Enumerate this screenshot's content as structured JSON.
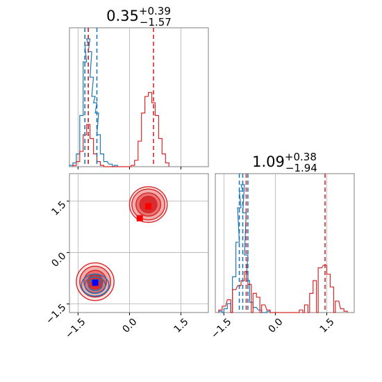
{
  "chart_data": {
    "type": "corner",
    "colors": {
      "blue": "#1f77b4",
      "red": "#d62728",
      "marker_blue": "#0000ff",
      "marker_red": "#ff0000",
      "grid": "#b0b0b0"
    },
    "xlim": [
      -1.75,
      2.3
    ],
    "ylim": [
      -1.75,
      2.3
    ],
    "tick_values": [
      -1.5,
      0.0,
      1.5
    ],
    "tick_labels": [
      "−1.5",
      "0.0",
      "1.5"
    ],
    "panels": [
      {
        "id": "param-1-marginal",
        "title": {
          "median": "0.35",
          "plus": "+0.39",
          "minus": "−1.57"
        },
        "red_quantile_lines": [
          -1.2,
          0.7
        ],
        "blue_quantile_lines": [
          -1.3,
          -1.2,
          -0.95
        ],
        "blue_hist": [
          {
            "x": -1.7,
            "y": 0.01
          },
          {
            "x": -1.6,
            "y": 0.03
          },
          {
            "x": -1.5,
            "y": 0.1
          },
          {
            "x": -1.4,
            "y": 0.4
          },
          {
            "x": -1.3,
            "y": 0.82
          },
          {
            "x": -1.25,
            "y": 0.95
          },
          {
            "x": -1.2,
            "y": 1.0
          },
          {
            "x": -1.15,
            "y": 0.9
          },
          {
            "x": -1.1,
            "y": 0.7
          },
          {
            "x": -1.05,
            "y": 0.55
          },
          {
            "x": -1.0,
            "y": 0.5
          },
          {
            "x": -0.95,
            "y": 0.42
          },
          {
            "x": -0.9,
            "y": 0.25
          },
          {
            "x": -0.8,
            "y": 0.1
          },
          {
            "x": -0.7,
            "y": 0.04
          },
          {
            "x": -0.55,
            "y": 0.02
          },
          {
            "x": -0.4,
            "y": 0.01
          }
        ],
        "red_hist": [
          {
            "x": -1.6,
            "y": 0.01
          },
          {
            "x": -1.5,
            "y": 0.04
          },
          {
            "x": -1.4,
            "y": 0.12
          },
          {
            "x": -1.3,
            "y": 0.25
          },
          {
            "x": -1.2,
            "y": 0.33
          },
          {
            "x": -1.1,
            "y": 0.22
          },
          {
            "x": -1.0,
            "y": 0.1
          },
          {
            "x": -0.9,
            "y": 0.04
          },
          {
            "x": -0.8,
            "y": 0.01
          },
          {
            "x": 0.1,
            "y": 0.01
          },
          {
            "x": 0.2,
            "y": 0.05
          },
          {
            "x": 0.3,
            "y": 0.2
          },
          {
            "x": 0.4,
            "y": 0.42
          },
          {
            "x": 0.5,
            "y": 0.55
          },
          {
            "x": 0.6,
            "y": 0.58
          },
          {
            "x": 0.7,
            "y": 0.5
          },
          {
            "x": 0.8,
            "y": 0.4
          },
          {
            "x": 0.9,
            "y": 0.22
          },
          {
            "x": 1.0,
            "y": 0.1
          },
          {
            "x": 1.1,
            "y": 0.03
          }
        ]
      },
      {
        "id": "param-2-marginal",
        "title": {
          "median": "1.09",
          "plus": "+0.38",
          "minus": "−1.94"
        },
        "red_quantile_lines": [
          -0.85,
          1.45
        ],
        "blue_quantile_lines": [
          -1.05,
          -0.95,
          -0.8
        ],
        "blue_hist": [
          {
            "x": -1.6,
            "y": 0.01
          },
          {
            "x": -1.45,
            "y": 0.03
          },
          {
            "x": -1.35,
            "y": 0.07
          },
          {
            "x": -1.2,
            "y": 0.28
          },
          {
            "x": -1.1,
            "y": 0.55
          },
          {
            "x": -1.05,
            "y": 0.82
          },
          {
            "x": -1.0,
            "y": 0.95
          },
          {
            "x": -0.95,
            "y": 1.0
          },
          {
            "x": -0.9,
            "y": 0.78
          },
          {
            "x": -0.85,
            "y": 0.45
          },
          {
            "x": -0.8,
            "y": 0.25
          },
          {
            "x": -0.7,
            "y": 0.08
          },
          {
            "x": -0.6,
            "y": 0.04
          },
          {
            "x": -0.45,
            "y": 0.02
          },
          {
            "x": -0.2,
            "y": 0.01
          }
        ],
        "red_hist": [
          {
            "x": -1.6,
            "y": 0.02
          },
          {
            "x": -1.5,
            "y": 0.05
          },
          {
            "x": -1.35,
            "y": 0.1
          },
          {
            "x": -1.2,
            "y": 0.18
          },
          {
            "x": -1.05,
            "y": 0.21
          },
          {
            "x": -0.95,
            "y": 0.25
          },
          {
            "x": -0.85,
            "y": 0.32
          },
          {
            "x": -0.75,
            "y": 0.22
          },
          {
            "x": -0.6,
            "y": 0.15
          },
          {
            "x": -0.5,
            "y": 0.12
          },
          {
            "x": -0.35,
            "y": 0.06
          },
          {
            "x": -0.2,
            "y": 0.02
          },
          {
            "x": 0.75,
            "y": 0.02
          },
          {
            "x": 0.9,
            "y": 0.06
          },
          {
            "x": 1.05,
            "y": 0.15
          },
          {
            "x": 1.15,
            "y": 0.25
          },
          {
            "x": 1.3,
            "y": 0.35
          },
          {
            "x": 1.45,
            "y": 0.37
          },
          {
            "x": 1.55,
            "y": 0.3
          },
          {
            "x": 1.65,
            "y": 0.2
          },
          {
            "x": 1.8,
            "y": 0.09
          },
          {
            "x": 1.95,
            "y": 0.03
          },
          {
            "x": 2.05,
            "y": 0.01
          }
        ]
      },
      {
        "id": "joint-2d",
        "red_clusters": [
          {
            "cx": -1.0,
            "cy": -0.85,
            "rx": [
              0.55,
              0.45,
              0.33,
              0.22
            ],
            "ry": [
              0.55,
              0.45,
              0.33,
              0.22
            ]
          },
          {
            "cx": 0.55,
            "cy": 1.4,
            "rx": [
              0.55,
              0.48,
              0.36,
              0.25
            ],
            "ry": [
              0.52,
              0.45,
              0.34,
              0.24
            ]
          }
        ],
        "blue_cluster": {
          "cx": -1.0,
          "cy": -0.95,
          "rx": [
            0.4,
            0.3,
            0.2
          ],
          "ry": [
            0.32,
            0.24,
            0.16
          ]
        },
        "markers": [
          {
            "x": 0.55,
            "y": 1.35,
            "color": "red"
          },
          {
            "x": 0.3,
            "y": 1.0,
            "color": "red"
          },
          {
            "x": -1.0,
            "y": -0.88,
            "color": "blue"
          }
        ]
      }
    ]
  }
}
